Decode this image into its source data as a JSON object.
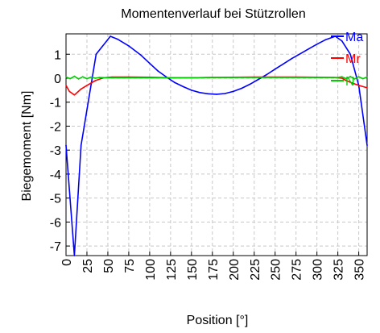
{
  "chart_data": {
    "type": "line",
    "title": "Momentenverlauf bei Stützrollen",
    "xlabel": "Position [°]",
    "ylabel": "Biegemoment [Nm]",
    "xlim": [
      0,
      360
    ],
    "ylim": [
      -7.4,
      1.85
    ],
    "grid": true,
    "legend_position": "top-right",
    "x_ticks": [
      "0",
      "25",
      "50",
      "75",
      "100",
      "125",
      "150",
      "175",
      "200",
      "225",
      "250",
      "275",
      "300",
      "325",
      "350"
    ],
    "y_ticks": [
      "1",
      "0",
      "-1",
      "-2",
      "-3",
      "-4",
      "-5",
      "-6",
      "-7"
    ],
    "series": [
      {
        "name": "Ma",
        "color": "#0000ff",
        "x": [
          0,
          10,
          18,
          36,
          53,
          62,
          75,
          90,
          100,
          110,
          120,
          130,
          140,
          150,
          160,
          170,
          180,
          190,
          200,
          210,
          220,
          230,
          240,
          250,
          260,
          270,
          280,
          290,
          300,
          310,
          322,
          330,
          340,
          350,
          360
        ],
        "y": [
          -2.8,
          -7.4,
          -2.8,
          1.0,
          1.75,
          1.62,
          1.35,
          0.95,
          0.62,
          0.3,
          0.05,
          -0.18,
          -0.35,
          -0.5,
          -0.6,
          -0.65,
          -0.67,
          -0.64,
          -0.55,
          -0.42,
          -0.25,
          -0.05,
          0.15,
          0.38,
          0.6,
          0.82,
          1.02,
          1.22,
          1.42,
          1.6,
          1.75,
          1.55,
          1.0,
          -0.3,
          -2.8
        ]
      },
      {
        "name": "Mr",
        "color": "#ff0000",
        "x": [
          0,
          4,
          10,
          18,
          25,
          35,
          45,
          55,
          75,
          100,
          125,
          150,
          175,
          200,
          225,
          250,
          275,
          300,
          320,
          330,
          335,
          342,
          350,
          360
        ],
        "y": [
          -0.3,
          -0.55,
          -0.7,
          -0.45,
          -0.3,
          -0.1,
          0.02,
          0.05,
          0.05,
          0.04,
          0.02,
          0.02,
          0.03,
          0.04,
          0.05,
          0.05,
          0.05,
          0.04,
          0.03,
          0.0,
          -0.1,
          -0.2,
          -0.3,
          -0.4
        ]
      },
      {
        "name": "N",
        "color": "#00cc00",
        "x": [
          0,
          5,
          10,
          15,
          20,
          25,
          30,
          35,
          40,
          50,
          75,
          100,
          125,
          150,
          175,
          200,
          225,
          250,
          275,
          300,
          325,
          330,
          335,
          340,
          345,
          350,
          355,
          360
        ],
        "y": [
          0.05,
          -0.02,
          0.08,
          -0.03,
          0.06,
          -0.02,
          0.05,
          0.0,
          0.03,
          0.02,
          0.02,
          0.02,
          0.02,
          0.02,
          0.03,
          0.03,
          0.03,
          0.03,
          0.03,
          0.03,
          0.03,
          0.06,
          -0.02,
          0.07,
          -0.03,
          0.06,
          -0.02,
          0.05
        ]
      }
    ]
  }
}
